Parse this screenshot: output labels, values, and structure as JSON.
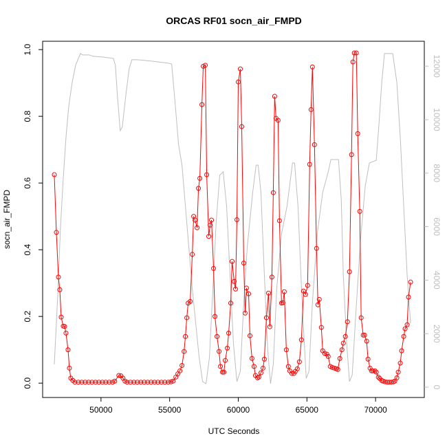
{
  "chart_data": {
    "type": "line",
    "title": "ORCAS RF01 socn_air_FMPD",
    "x_label": "UTC Seconds",
    "y_label": "socn_air_FMPD",
    "xlim": [
      45750,
      73550
    ],
    "xticks": [
      50000,
      55000,
      60000,
      65000,
      70000
    ],
    "ylim": [
      -0.043,
      1.025
    ],
    "yticks": [
      {
        "value": 0,
        "label": "0.0"
      },
      {
        "value": 0.2,
        "label": "0.2"
      },
      {
        "value": 0.4,
        "label": "0.4"
      },
      {
        "value": 0.6,
        "label": "0.6"
      },
      {
        "value": 0.8,
        "label": "0.8"
      },
      {
        "value": 1,
        "label": "1.0"
      }
    ],
    "y2lim": [
      -386,
      12930
    ],
    "y2ticks": [
      0,
      2000,
      4000,
      6000,
      8000,
      10000,
      12000
    ],
    "y2_color": "#bebebe",
    "series": [
      {
        "color": "#bebebe",
        "axis": "y2",
        "markers": false,
        "x": [
          46600,
          46850,
          47050,
          47250,
          47450,
          47650,
          47900,
          48150,
          48500,
          48650,
          49150,
          49400,
          50150,
          50900,
          51050,
          51200,
          51400,
          51550,
          51800,
          52050,
          52250,
          52650,
          53650,
          54900,
          55150,
          55400,
          55650,
          55900,
          56150,
          56400,
          56650,
          56900,
          57150,
          57400,
          57650,
          57900,
          58150,
          58400,
          58650,
          58900,
          59150,
          59400,
          59650,
          59900,
          60150,
          60400,
          60650,
          61050,
          61300,
          61450,
          61650,
          61900,
          62150,
          62350,
          62550,
          62800,
          63150,
          63550,
          63950,
          64100,
          64350,
          64650,
          64950,
          65150,
          65400,
          65750,
          66150,
          66550,
          66750,
          67300,
          67500,
          67650,
          67900,
          68100,
          68300,
          68550,
          68900,
          69250,
          69550,
          70050,
          70250,
          70450,
          70650,
          71250,
          71550,
          71800,
          72050,
          72300,
          72550
        ],
        "values": [
          850,
          3420,
          5990,
          7790,
          9330,
          10490,
          11390,
          12030,
          12470,
          12420,
          12420,
          12370,
          12340,
          12290,
          12030,
          10870,
          9590,
          9720,
          10870,
          11900,
          12240,
          12240,
          12190,
          12110,
          12080,
          10620,
          9070,
          8300,
          6760,
          5220,
          3680,
          2390,
          1110,
          210,
          130,
          1110,
          3680,
          6250,
          7920,
          8050,
          6760,
          4190,
          1620,
          210,
          590,
          3160,
          5220,
          7280,
          8300,
          8300,
          7280,
          4190,
          1360,
          130,
          850,
          3680,
          5730,
          6760,
          8380,
          8380,
          6760,
          3160,
          330,
          590,
          3160,
          5730,
          7280,
          8050,
          8510,
          8510,
          7020,
          4190,
          1620,
          210,
          460,
          2650,
          5480,
          7530,
          8380,
          8480,
          9850,
          11390,
          12470,
          12470,
          11390,
          9330,
          6760,
          4190,
          2390
        ]
      },
      {
        "color": "#ff0000",
        "axis": "y",
        "markers": true,
        "x": [
          46600,
          46750,
          46900,
          47000,
          47100,
          47250,
          47350,
          47450,
          47600,
          47700,
          47800,
          47950,
          48100,
          48350,
          48600,
          48850,
          49100,
          49350,
          49600,
          49850,
          50100,
          50350,
          50600,
          50850,
          51000,
          51300,
          51450,
          51600,
          51750,
          51900,
          52150,
          52400,
          52650,
          52900,
          53150,
          53400,
          53650,
          53900,
          54150,
          54400,
          54650,
          54900,
          55100,
          55250,
          55450,
          55600,
          55750,
          55900,
          56050,
          56150,
          56250,
          56350,
          56500,
          56650,
          56750,
          56850,
          57000,
          57100,
          57200,
          57350,
          57450,
          57600,
          57700,
          57850,
          57950,
          58050,
          58200,
          58300,
          58450,
          58600,
          58700,
          58850,
          58950,
          59050,
          59200,
          59300,
          59450,
          59550,
          59700,
          59800,
          59900,
          60000,
          60150,
          60250,
          60400,
          60500,
          60600,
          60750,
          60850,
          61000,
          61150,
          61250,
          61400,
          61500,
          61650,
          61800,
          61900,
          62050,
          62200,
          62300,
          62450,
          62550,
          62650,
          62750,
          62900,
          63000,
          63150,
          63250,
          63350,
          63500,
          63650,
          63750,
          63900,
          64050,
          64150,
          64300,
          64450,
          64600,
          64750,
          64900,
          65050,
          65200,
          65300,
          65400,
          65550,
          65700,
          65800,
          65900,
          66050,
          66150,
          66300,
          66450,
          66550,
          66700,
          66850,
          67000,
          67150,
          67250,
          67400,
          67550,
          67650,
          67800,
          67950,
          68100,
          68250,
          68350,
          68450,
          68600,
          68700,
          68850,
          68950,
          69100,
          69200,
          69350,
          69450,
          69600,
          69700,
          69800,
          69950,
          70050,
          70200,
          70300,
          70450,
          70550,
          70700,
          70850,
          71000,
          71150,
          71300,
          71400,
          71550,
          71650,
          71800,
          71900,
          72050,
          72150,
          72300,
          72400,
          72550
        ],
        "values": [
          0.625,
          0.452,
          0.318,
          0.28,
          0.198,
          0.171,
          0.17,
          0.15,
          0.1,
          0.045,
          0.015,
          0.008,
          0.003,
          0.003,
          0.003,
          0.003,
          0.003,
          0.003,
          0.003,
          0.003,
          0.003,
          0.003,
          0.003,
          0.003,
          0.006,
          0.023,
          0.022,
          0.015,
          0.006,
          0.003,
          0.003,
          0.003,
          0.003,
          0.003,
          0.003,
          0.003,
          0.003,
          0.003,
          0.003,
          0.003,
          0.003,
          0.003,
          0.004,
          0.006,
          0.018,
          0.028,
          0.037,
          0.053,
          0.095,
          0.14,
          0.196,
          0.24,
          0.245,
          0.386,
          0.5,
          0.489,
          0.466,
          0.584,
          0.614,
          0.835,
          0.95,
          0.953,
          0.625,
          0.44,
          0.474,
          0.489,
          0.344,
          0.2,
          0.14,
          0.095,
          0.05,
          0.033,
          0.033,
          0.068,
          0.105,
          0.15,
          0.24,
          0.365,
          0.305,
          0.282,
          0.49,
          0.903,
          0.942,
          0.769,
          0.36,
          0.21,
          0.285,
          0.268,
          0.142,
          0.074,
          0.05,
          0.023,
          0.016,
          0.018,
          0.031,
          0.045,
          0.072,
          0.196,
          0.27,
          0.169,
          0.318,
          0.571,
          0.86,
          0.794,
          0.788,
          0.487,
          0.24,
          0.241,
          0.274,
          0.1,
          0.05,
          0.037,
          0.029,
          0.029,
          0.035,
          0.043,
          0.064,
          0.13,
          0.276,
          0.266,
          0.293,
          0.656,
          0.82,
          0.948,
          0.715,
          0.404,
          0.235,
          0.251,
          0.167,
          0.097,
          0.089,
          0.087,
          0.08,
          0.05,
          0.047,
          0.045,
          0.043,
          0.041,
          0.074,
          0.1,
          0.12,
          0.14,
          0.184,
          0.334,
          0.685,
          0.963,
          0.99,
          0.99,
          0.748,
          0.515,
          0.196,
          0.144,
          0.144,
          0.126,
          0.072,
          0.045,
          0.037,
          0.037,
          0.037,
          0.033,
          0.018,
          0.014,
          0.008,
          0.006,
          0.004,
          0.003,
          0.003,
          0.003,
          0.004,
          0.006,
          0.016,
          0.033,
          0.06,
          0.097,
          0.14,
          0.163,
          0.175,
          0.258,
          0.303
        ]
      }
    ]
  }
}
